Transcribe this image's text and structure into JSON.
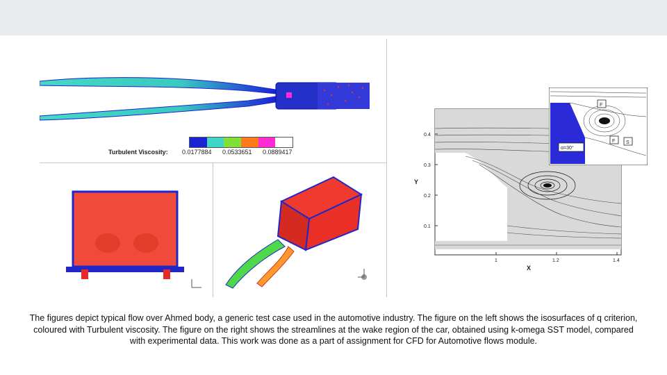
{
  "figure_left_top": {
    "legend_title": "Turbulent Viscosity:",
    "legend_ticks": [
      "0.0177884",
      "0.0533651",
      "0.0889417"
    ],
    "legend_colors": [
      "#1a22d6",
      "#3fd6c8",
      "#7fe03a",
      "#ff7a1a",
      "#ff2ad2",
      "#ffffff"
    ]
  },
  "figure_right": {
    "y_label": "Y",
    "x_label": "X",
    "y_ticks": [
      "0.4",
      "0.3",
      "0.2",
      "0.1"
    ],
    "x_ticks": [
      "1",
      "1.2",
      "1.4"
    ],
    "inset_angle": "α=30°",
    "inset_markers": [
      "F",
      "F",
      "S"
    ]
  },
  "caption": "The figures depict typical flow over Ahmed body, a generic test case used in the automotive industry. The figure on the left shows the isosurfaces of q criterion, coloured with Turbulent viscosity.  The figure on the right shows the streamlines at the wake region of the car, obtained using k-omega SST model,  compared with experimental data. This work was done as a part of assignment for CFD for Automotive flows module."
}
